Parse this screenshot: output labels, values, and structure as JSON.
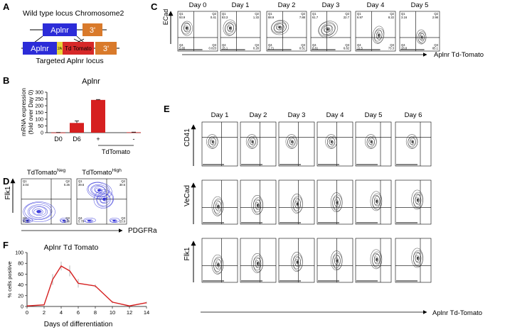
{
  "panel_letters": {
    "a": "A",
    "b": "B",
    "c": "C",
    "d": "D",
    "e": "E",
    "f": "F"
  },
  "panel_a": {
    "title": "Wild type locus Chromosome2",
    "gene_box": "Aplnr",
    "utr_box": "3'",
    "targeted_gene_box": "Aplnr",
    "t2a_label": "2A",
    "reporter_box": "Td Tomato",
    "targeted_utr_box": "3'",
    "caption": "Targeted Aplnr  locus",
    "colors": {
      "gene": "#2c2cd8",
      "utr": "#d97a2b",
      "t2a": "#e8d43a",
      "reporter": "#d62828"
    }
  },
  "panel_b": {
    "chart_data": {
      "type": "bar",
      "title": "Aplnr",
      "ylabel": "mRNA expression (fold over Day 0)",
      "ylim": [
        0,
        300
      ],
      "yticks": [
        0,
        50,
        100,
        150,
        200,
        250,
        300
      ],
      "categories": [
        "D0",
        "D6",
        "+",
        "-"
      ],
      "group_label": "TdTomato",
      "values": [
        1,
        72,
        243,
        3
      ],
      "errors": [
        0.5,
        15,
        3,
        1
      ],
      "bar_color": "#d62020"
    }
  },
  "panel_c": {
    "days": [
      "Day 0",
      "Day 1",
      "Day 2",
      "Day 3",
      "Day 4",
      "Day 5"
    ],
    "ylabel": "ECad",
    "xlabel": "Aplnr Td-Tomato",
    "quadrants": [
      {
        "q1": "Q1",
        "q1v": "93.9",
        "q2": "Q2",
        "q2v": "0.41",
        "q3": "Q3",
        "q3v": "0.023",
        "q4": "Q4",
        "q4v": "5.65"
      },
      {
        "q1": "Q1",
        "q1v": "83.3",
        "q2": "Q2",
        "q2v": "1.33",
        "q3": "Q3",
        "q3v": "0.28",
        "q4": "Q4",
        "q4v": "15.1"
      },
      {
        "q1": "Q1",
        "q1v": "88.9",
        "q2": "Q2",
        "q2v": "7.88",
        "q3": "Q3",
        "q3v": "0.51",
        "q4": "Q4",
        "q4v": "2.71"
      },
      {
        "q1": "Q1",
        "q1v": "61.7",
        "q2": "Q2",
        "q2v": "22.7",
        "q3": "Q3",
        "q3v": "6.82",
        "q4": "Q4",
        "q4v": "8.81"
      },
      {
        "q1": "Q1",
        "q1v": "6.97",
        "q2": "Q2",
        "q2v": "8.22",
        "q3": "Q3",
        "q3v": "73.3",
        "q4": "Q4",
        "q4v": "11.5"
      },
      {
        "q1": "Q1",
        "q1v": "3.16",
        "q2": "Q2",
        "q2v": "2.98",
        "q3": "Q3",
        "q3v": "65.1",
        "q4": "Q4",
        "q4v": "28.8"
      }
    ]
  },
  "panel_d": {
    "titles": [
      {
        "main": "TdTomato",
        "sup": "Neg"
      },
      {
        "main": "TdTomato",
        "sup": "High"
      }
    ],
    "ylabel": "Flk1",
    "xlabel": "PDGFRa",
    "quadrants": [
      {
        "q1": "Q1",
        "q1v": "3.04",
        "q2": "Q2",
        "q2v": "0.26",
        "q3": "Q3",
        "q3v": "1.38",
        "q4": "Q4",
        "q4v": "95.3"
      },
      {
        "q1": "Q1",
        "q1v": "39.6",
        "q2": "Q2",
        "q2v": "30.5",
        "q3": "Q3",
        "q3v": "23.9",
        "q4": "Q4",
        "q4v": "5.79"
      }
    ],
    "contour_color": "#2a2ad8"
  },
  "panel_e": {
    "days": [
      "Day 1",
      "Day 2",
      "Day 3",
      "Day 4",
      "Day 5",
      "Day 6"
    ],
    "row_labels": [
      "CD41",
      "VeCad",
      "Flk1"
    ],
    "xlabel": "Aplnr Td-Tomato"
  },
  "panel_f": {
    "chart_data": {
      "type": "line",
      "title": "Aplnr Td Tomato",
      "xlabel": "Days of differentiation",
      "ylabel": "% cells positive",
      "xlim": [
        0,
        14
      ],
      "ylim": [
        0,
        100
      ],
      "xticks": [
        0,
        2,
        4,
        6,
        8,
        10,
        12,
        14
      ],
      "yticks": [
        0,
        20,
        40,
        60,
        80,
        100
      ],
      "x": [
        0,
        2,
        3,
        4,
        5,
        6,
        8,
        10,
        12,
        14
      ],
      "y": [
        1,
        3,
        50,
        75,
        66,
        43,
        38,
        8,
        1,
        7
      ],
      "errors": [
        0,
        1,
        10,
        8,
        10,
        8,
        3,
        2,
        1,
        2
      ],
      "line_color": "#d62020"
    }
  }
}
